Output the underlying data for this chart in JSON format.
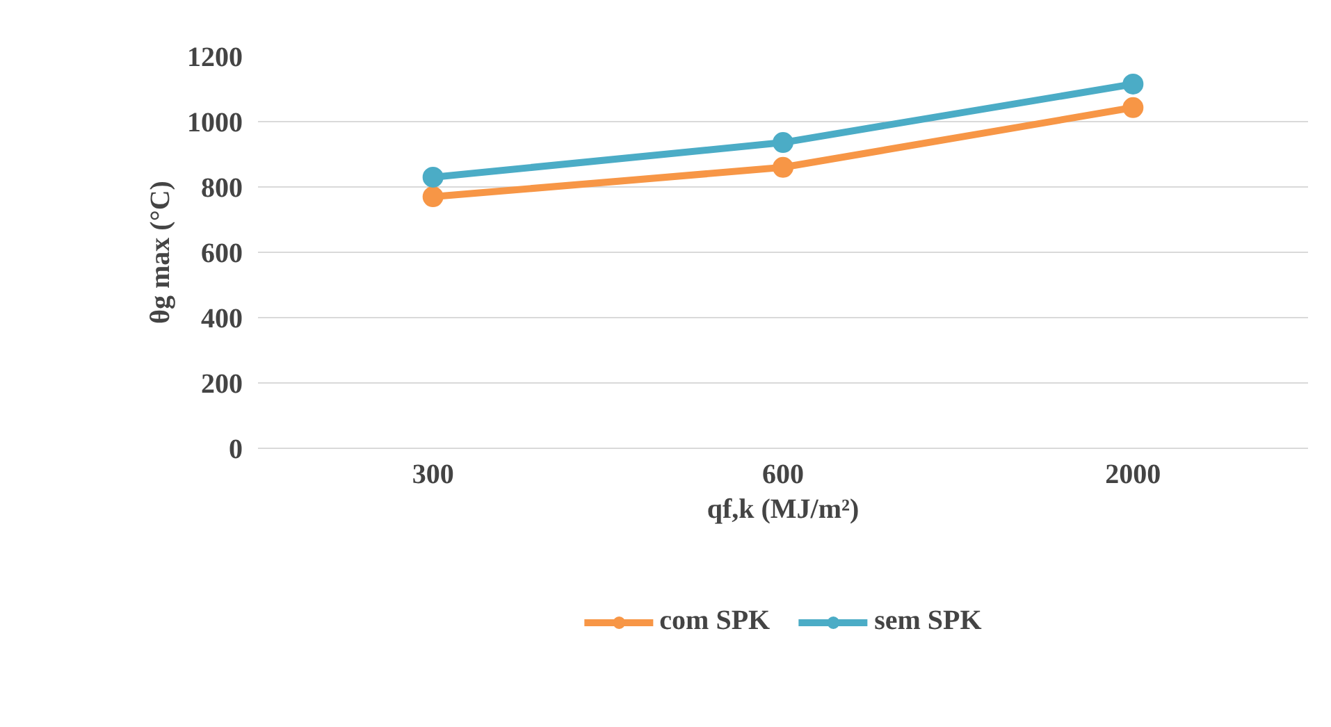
{
  "chart_data": {
    "type": "line",
    "xlabel": "qf,k (MJ/m²)",
    "ylabel": "θg max (°C)",
    "categories": [
      "300",
      "600",
      "2000"
    ],
    "series": [
      {
        "name": "com SPK",
        "color": "#f79646",
        "values": [
          770,
          860,
          1043
        ]
      },
      {
        "name": "sem SPK",
        "color": "#4bacc6",
        "values": [
          830,
          936,
          1115
        ]
      }
    ],
    "ylim": [
      0,
      1200
    ],
    "yticks": [
      0,
      200,
      400,
      600,
      800,
      1000,
      1200
    ],
    "grid": "y",
    "legend": "bottom",
    "marker": "circle",
    "line_style": "solid"
  }
}
